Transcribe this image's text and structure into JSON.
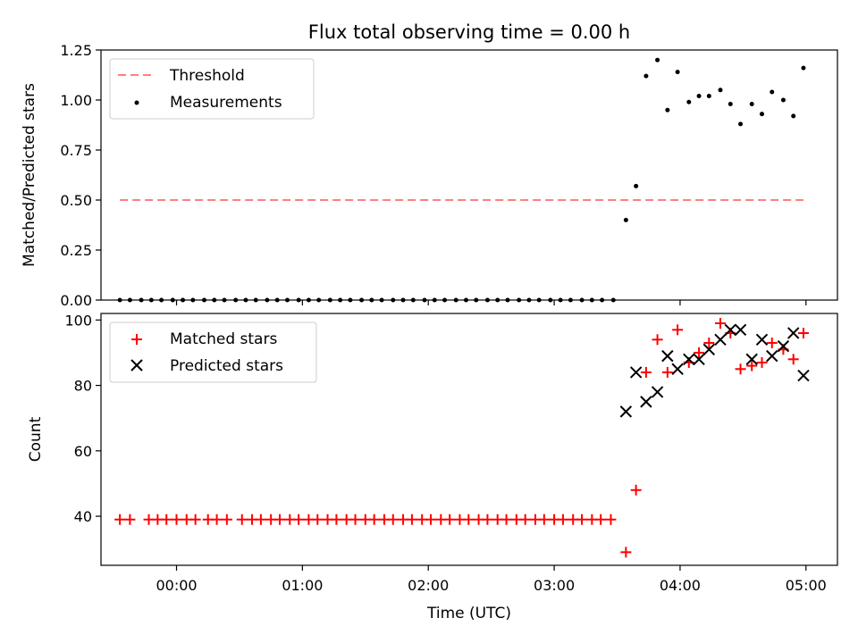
{
  "chart_data": [
    {
      "type": "scatter",
      "title": "Flux total observing time = 0.00 h",
      "xlabel": "",
      "ylabel": "Matched/Predicted stars",
      "xlim": [
        -0.6,
        5.25
      ],
      "ylim": [
        0,
        1.25
      ],
      "yticks": [
        0.0,
        0.25,
        0.5,
        0.75,
        1.0,
        1.25
      ],
      "ytick_labels": [
        "0.00",
        "0.25",
        "0.50",
        "0.75",
        "1.00",
        "1.25"
      ],
      "xticks": [
        0,
        1,
        2,
        3,
        4,
        5
      ],
      "grid": false,
      "legend_position": "top-left",
      "colors": {
        "threshold": "#ff7f7f",
        "measurements": "#000000"
      },
      "series": [
        {
          "name": "Threshold",
          "kind": "dashed-line",
          "x": [
            -0.45,
            4.98
          ],
          "y": [
            0.5,
            0.5
          ]
        },
        {
          "name": "Measurements",
          "kind": "dots",
          "x": [
            -0.45,
            -0.37,
            -0.28,
            -0.2,
            -0.12,
            -0.03,
            0.05,
            0.13,
            0.22,
            0.3,
            0.38,
            0.47,
            0.55,
            0.63,
            0.72,
            0.8,
            0.88,
            0.97,
            1.05,
            1.13,
            1.22,
            1.3,
            1.38,
            1.47,
            1.55,
            1.63,
            1.72,
            1.8,
            1.88,
            1.97,
            2.05,
            2.13,
            2.22,
            2.3,
            2.38,
            2.47,
            2.55,
            2.63,
            2.72,
            2.8,
            2.88,
            2.97,
            3.05,
            3.13,
            3.22,
            3.3,
            3.38,
            3.47,
            3.57,
            3.65,
            3.73,
            3.82,
            3.9,
            3.98,
            4.07,
            4.15,
            4.23,
            4.32,
            4.4,
            4.48,
            4.57,
            4.65,
            4.73,
            4.82,
            4.9,
            4.98
          ],
          "y": [
            0,
            0,
            0,
            0,
            0,
            0,
            0,
            0,
            0,
            0,
            0,
            0,
            0,
            0,
            0,
            0,
            0,
            0,
            0,
            0,
            0,
            0,
            0,
            0,
            0,
            0,
            0,
            0,
            0,
            0,
            0,
            0,
            0,
            0,
            0,
            0,
            0,
            0,
            0,
            0,
            0,
            0,
            0,
            0,
            0,
            0,
            0,
            0,
            0.4,
            0.57,
            1.12,
            1.2,
            0.95,
            1.14,
            0.99,
            1.02,
            1.02,
            1.05,
            0.98,
            0.88,
            0.98,
            0.93,
            1.04,
            1.0,
            0.92,
            1.16
          ]
        }
      ]
    },
    {
      "type": "scatter",
      "title": "",
      "xlabel": "Time (UTC)",
      "ylabel": "Count",
      "xlim": [
        -0.6,
        5.25
      ],
      "ylim": [
        25,
        102
      ],
      "yticks": [
        40,
        60,
        80,
        100
      ],
      "ytick_labels": [
        "40",
        "60",
        "80",
        "100"
      ],
      "xticks": [
        0,
        1,
        2,
        3,
        4,
        5
      ],
      "xtick_labels": [
        "00:00",
        "01:00",
        "02:00",
        "03:00",
        "04:00",
        "05:00"
      ],
      "grid": false,
      "legend_position": "top-left",
      "colors": {
        "matched": "#ff0000",
        "predicted": "#000000"
      },
      "series": [
        {
          "name": "Matched stars",
          "kind": "plus",
          "x": [
            -0.45,
            -0.37,
            -0.22,
            -0.15,
            -0.08,
            0.0,
            0.08,
            0.15,
            0.25,
            0.32,
            0.4,
            0.52,
            0.6,
            0.67,
            0.75,
            0.82,
            0.9,
            0.97,
            1.05,
            1.12,
            1.2,
            1.27,
            1.35,
            1.42,
            1.5,
            1.57,
            1.65,
            1.72,
            1.8,
            1.87,
            1.95,
            2.02,
            2.1,
            2.17,
            2.25,
            2.32,
            2.4,
            2.47,
            2.55,
            2.62,
            2.7,
            2.77,
            2.85,
            2.92,
            3.0,
            3.07,
            3.15,
            3.22,
            3.3,
            3.37,
            3.45,
            3.57,
            3.65,
            3.73,
            3.82,
            3.9,
            3.98,
            4.07,
            4.15,
            4.23,
            4.32,
            4.4,
            4.48,
            4.57,
            4.65,
            4.73,
            4.82,
            4.9,
            4.98
          ],
          "y": [
            39,
            39,
            39,
            39,
            39,
            39,
            39,
            39,
            39,
            39,
            39,
            39,
            39,
            39,
            39,
            39,
            39,
            39,
            39,
            39,
            39,
            39,
            39,
            39,
            39,
            39,
            39,
            39,
            39,
            39,
            39,
            39,
            39,
            39,
            39,
            39,
            39,
            39,
            39,
            39,
            39,
            39,
            39,
            39,
            39,
            39,
            39,
            39,
            39,
            39,
            39,
            29,
            48,
            84,
            94,
            84,
            97,
            87,
            90,
            93,
            99,
            96,
            85,
            86,
            87,
            93,
            91,
            88,
            96
          ]
        },
        {
          "name": "Predicted stars",
          "kind": "x",
          "x": [
            3.57,
            3.65,
            3.73,
            3.82,
            3.9,
            3.98,
            4.07,
            4.15,
            4.23,
            4.32,
            4.4,
            4.48,
            4.57,
            4.65,
            4.73,
            4.82,
            4.9,
            4.98
          ],
          "y": [
            72,
            84,
            75,
            78,
            89,
            85,
            88,
            88,
            91,
            94,
            97,
            97,
            88,
            94,
            89,
            92,
            96,
            83
          ]
        }
      ]
    }
  ]
}
